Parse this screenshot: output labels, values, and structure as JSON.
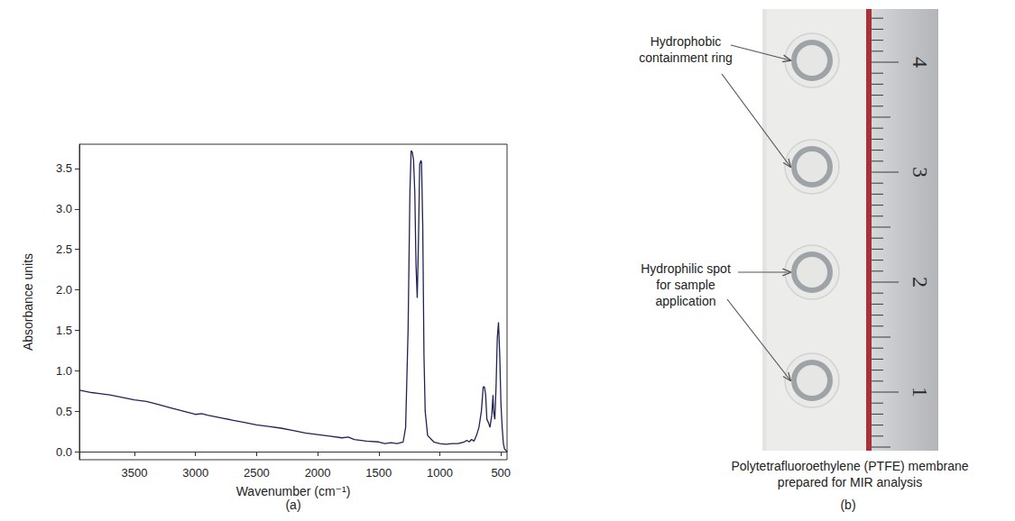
{
  "chart_data": {
    "type": "line",
    "caption": "(a)",
    "x_label": "Wavenumber (cm⁻¹)",
    "y_label": "Absorbance units",
    "x": [
      3950,
      3850,
      3800,
      3700,
      3600,
      3500,
      3400,
      3300,
      3200,
      3100,
      3000,
      2950,
      2900,
      2800,
      2700,
      2600,
      2500,
      2400,
      2300,
      2200,
      2100,
      2000,
      1900,
      1800,
      1750,
      1700,
      1600,
      1500,
      1450,
      1400,
      1350,
      1300,
      1280,
      1260,
      1245,
      1235,
      1225,
      1215,
      1205,
      1195,
      1185,
      1175,
      1165,
      1155,
      1150,
      1140,
      1130,
      1120,
      1100,
      1050,
      1000,
      950,
      900,
      850,
      800,
      780,
      760,
      740,
      720,
      700,
      680,
      660,
      645,
      635,
      625,
      615,
      600,
      590,
      575,
      565,
      560,
      550,
      540,
      530,
      520,
      510,
      500,
      490,
      480,
      470,
      450
    ],
    "values": [
      0.76,
      0.73,
      0.72,
      0.7,
      0.67,
      0.64,
      0.62,
      0.58,
      0.54,
      0.5,
      0.46,
      0.47,
      0.45,
      0.42,
      0.39,
      0.36,
      0.33,
      0.31,
      0.29,
      0.26,
      0.23,
      0.21,
      0.19,
      0.17,
      0.18,
      0.15,
      0.13,
      0.12,
      0.1,
      0.11,
      0.1,
      0.12,
      0.3,
      1.5,
      3.2,
      3.72,
      3.7,
      3.6,
      3.2,
      2.3,
      1.9,
      2.6,
      3.55,
      3.6,
      3.58,
      2.8,
      1.2,
      0.5,
      0.2,
      0.12,
      0.1,
      0.09,
      0.1,
      0.1,
      0.12,
      0.14,
      0.12,
      0.15,
      0.13,
      0.2,
      0.3,
      0.5,
      0.8,
      0.8,
      0.7,
      0.4,
      0.35,
      0.3,
      0.45,
      0.7,
      0.5,
      0.4,
      0.8,
      1.4,
      1.6,
      1.2,
      0.6,
      0.3,
      0.1,
      0.03,
      0.0
    ],
    "color": "#1f2355",
    "xlim": [
      3950,
      450
    ],
    "xticks": [
      3500,
      3000,
      2500,
      2000,
      1500,
      1000,
      500
    ],
    "ylim": [
      -0.1,
      3.8
    ],
    "yticks": [
      {
        "value": 0,
        "label": "0.0"
      },
      {
        "value": 0.5,
        "label": "0.5"
      },
      {
        "value": 1,
        "label": "1.0"
      },
      {
        "value": 1.5,
        "label": "1.5"
      },
      {
        "value": 2,
        "label": "2.0"
      },
      {
        "value": 2.5,
        "label": "2.5"
      },
      {
        "value": 3,
        "label": "3.0"
      },
      {
        "value": 3.5,
        "label": "3.5"
      }
    ],
    "grid": false
  },
  "photo": {
    "caption": "(b)",
    "title": "Polytetrafluoroethylene (PTFE) membrane prepared for MIR analysis",
    "annotations": [
      {
        "text": "Hydrophobic containment ring"
      },
      {
        "text": "Hydrophilic spot for sample application"
      }
    ],
    "ruler_labels": [
      1,
      2,
      3,
      4
    ]
  }
}
